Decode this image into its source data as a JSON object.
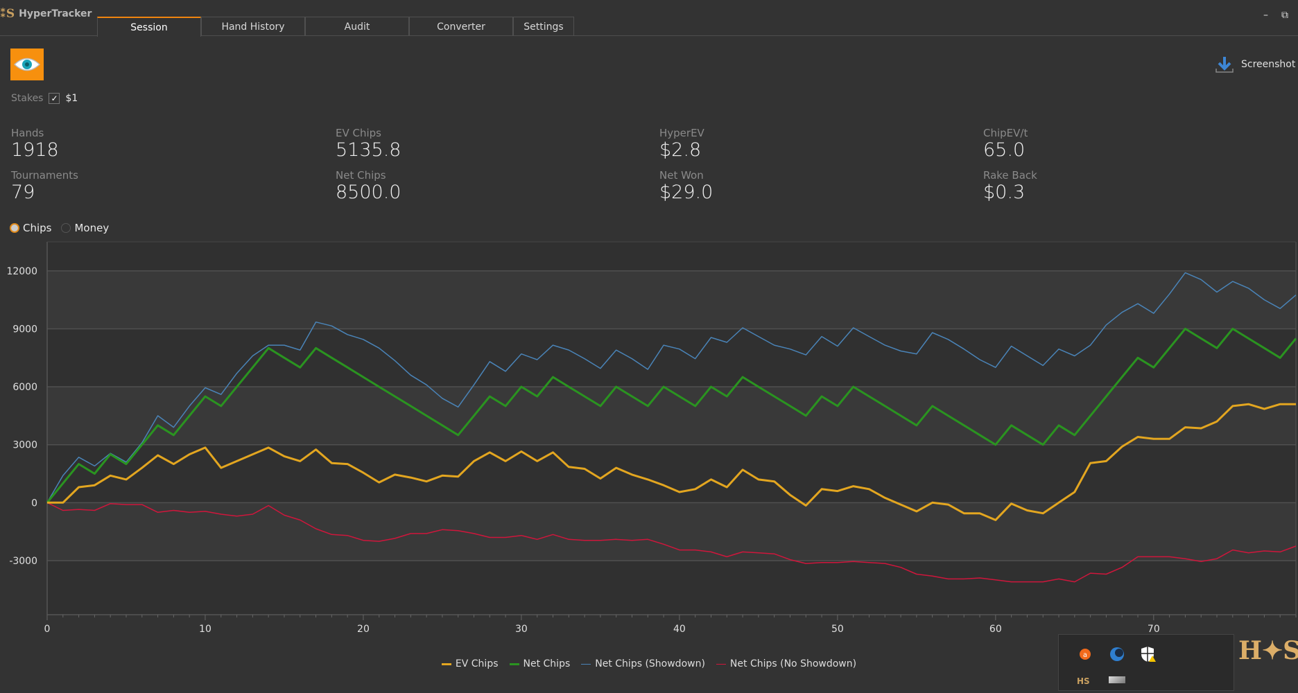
{
  "app": {
    "title": "HyperTracker",
    "logo_text": "HS"
  },
  "tabs": [
    {
      "label": "Session",
      "active": true
    },
    {
      "label": "Hand History",
      "active": false
    },
    {
      "label": "Audit",
      "active": false
    },
    {
      "label": "Converter",
      "active": false
    },
    {
      "label": "Settings",
      "active": false
    }
  ],
  "toolbar": {
    "screenshot_label": "Screenshot"
  },
  "stakes": {
    "label": "Stakes",
    "options": [
      {
        "label": "$1",
        "checked": true
      }
    ]
  },
  "stats": [
    {
      "label": "Hands",
      "value": "1918"
    },
    {
      "label": "Tournaments",
      "value": "79"
    },
    {
      "label": "EV Chips",
      "value": "5135.8"
    },
    {
      "label": "Net Chips",
      "value": "8500.0"
    },
    {
      "label": "HyperEV",
      "value": "$2.8"
    },
    {
      "label": "Net Won",
      "value": "$29.0"
    },
    {
      "label": "ChipEV/t",
      "value": "65.0"
    },
    {
      "label": "Rake Back",
      "value": "$0.3"
    }
  ],
  "mode": {
    "options": [
      "Chips",
      "Money"
    ],
    "selected": "Chips"
  },
  "colors": {
    "accent": "#f0850f",
    "ev": "#e3a620",
    "net": "#2a9420",
    "showdown": "#4a84b8",
    "noshowdown": "#d0163c"
  },
  "chart_data": {
    "type": "line",
    "xlabel": "",
    "ylabel": "",
    "xlim": [
      0,
      79
    ],
    "ylim": [
      -5800,
      13500
    ],
    "xticks": [
      0,
      10,
      20,
      30,
      40,
      50,
      60,
      70
    ],
    "yticks": [
      -3000,
      0,
      3000,
      6000,
      9000,
      12000
    ],
    "grid": true,
    "legend_position": "bottom",
    "series": [
      {
        "name": "EV Chips",
        "color": "#e3a620",
        "width": 3,
        "values": [
          0,
          0,
          800,
          900,
          1400,
          1200,
          1800,
          2450,
          2000,
          2500,
          2850,
          1800,
          2150,
          2500,
          2850,
          2400,
          2150,
          2750,
          2050,
          2000,
          1550,
          1050,
          1450,
          1300,
          1100,
          1400,
          1350,
          2150,
          2600,
          2150,
          2650,
          2150,
          2600,
          1850,
          1750,
          1250,
          1800,
          1450,
          1200,
          900,
          550,
          700,
          1200,
          800,
          1700,
          1200,
          1100,
          400,
          -150,
          700,
          600,
          850,
          700,
          250,
          -100,
          -450,
          0,
          -100,
          -550,
          -550,
          -900,
          -50,
          -400,
          -550,
          0,
          550,
          2050,
          2150,
          2900,
          3400,
          3300,
          3300,
          3900,
          3850,
          4200,
          5000,
          5100,
          4850,
          5100,
          5100
        ]
      },
      {
        "name": "Net Chips",
        "color": "#2a9420",
        "width": 3,
        "values": [
          0,
          1000,
          2000,
          1500,
          2500,
          2000,
          3000,
          4000,
          3500,
          4500,
          5500,
          5000,
          6000,
          7000,
          8000,
          7500,
          7000,
          8000,
          7500,
          7000,
          6500,
          6000,
          5500,
          5000,
          4500,
          4000,
          3500,
          4500,
          5500,
          5000,
          6000,
          5500,
          6500,
          6000,
          5500,
          5000,
          6000,
          5500,
          5000,
          6000,
          5500,
          5000,
          6000,
          5500,
          6500,
          6000,
          5500,
          5000,
          4500,
          5500,
          5000,
          6000,
          5500,
          5000,
          4500,
          4000,
          5000,
          4500,
          4000,
          3500,
          3000,
          4000,
          3500,
          3000,
          4000,
          3500,
          4500,
          5500,
          6500,
          7500,
          7000,
          8000,
          9000,
          8500,
          8000,
          9000,
          8500,
          8000,
          7500,
          8500
        ]
      },
      {
        "name": "Net Chips (Showdown)",
        "color": "#4a84b8",
        "width": 1.5,
        "values": [
          0,
          1400,
          2350,
          1900,
          2550,
          2100,
          3100,
          4500,
          3900,
          5000,
          5950,
          5600,
          6700,
          7600,
          8150,
          8150,
          7900,
          9350,
          9150,
          8700,
          8450,
          8000,
          7350,
          6600,
          6100,
          5400,
          4950,
          6100,
          7300,
          6800,
          7700,
          7400,
          8150,
          7900,
          7450,
          6950,
          7900,
          7450,
          6900,
          8150,
          7950,
          7450,
          8550,
          8300,
          9050,
          8600,
          8150,
          7950,
          7650,
          8600,
          8100,
          9050,
          8600,
          8150,
          7850,
          7700,
          8800,
          8450,
          7950,
          7400,
          7000,
          8100,
          7600,
          7100,
          7950,
          7600,
          8150,
          9200,
          9850,
          10300,
          9800,
          10800,
          11900,
          11550,
          10900,
          11450,
          11100,
          10500,
          10050,
          10750
        ]
      },
      {
        "name": "Net Chips (No Showdown)",
        "color": "#d0163c",
        "width": 1.5,
        "values": [
          0,
          -400,
          -350,
          -400,
          -50,
          -100,
          -100,
          -500,
          -400,
          -500,
          -450,
          -600,
          -700,
          -600,
          -150,
          -650,
          -900,
          -1350,
          -1650,
          -1700,
          -1950,
          -2000,
          -1850,
          -1600,
          -1600,
          -1400,
          -1450,
          -1600,
          -1800,
          -1800,
          -1700,
          -1900,
          -1650,
          -1900,
          -1950,
          -1950,
          -1900,
          -1950,
          -1900,
          -2150,
          -2450,
          -2450,
          -2550,
          -2800,
          -2550,
          -2600,
          -2650,
          -2950,
          -3150,
          -3100,
          -3100,
          -3050,
          -3100,
          -3150,
          -3350,
          -3700,
          -3800,
          -3950,
          -3950,
          -3900,
          -4000,
          -4100,
          -4100,
          -4100,
          -3950,
          -4100,
          -3650,
          -3700,
          -3350,
          -2800,
          -2800,
          -2800,
          -2900,
          -3050,
          -2900,
          -2450,
          -2600,
          -2500,
          -2550,
          -2250
        ]
      }
    ]
  }
}
